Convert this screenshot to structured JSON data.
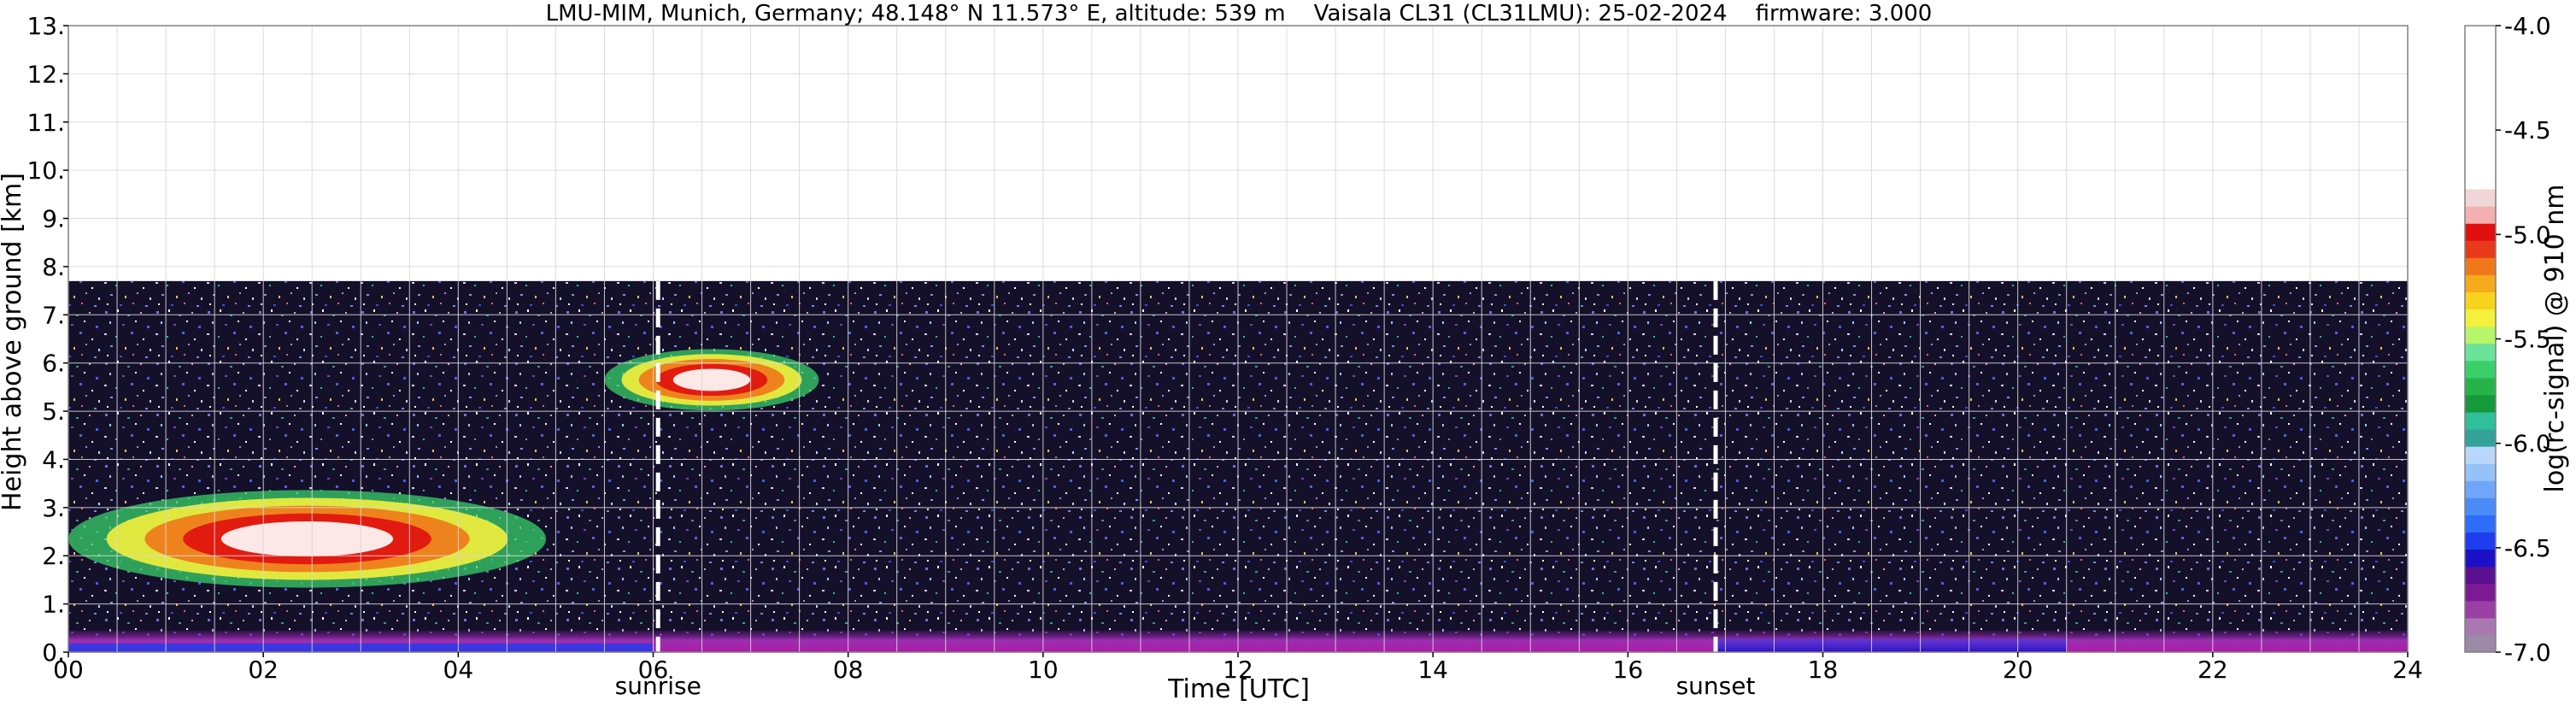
{
  "chart_data": {
    "type": "heatmap",
    "title": "LMU-MIM, Munich, Germany; 48.148° N 11.573° E, altitude: 539 m    Vaisala CL31 (CL31LMU): 25-02-2024    firmware: 3.000",
    "xlabel": "Time [UTC]",
    "ylabel": "Height above ground [km]",
    "xlim": [
      0,
      24
    ],
    "ylim": [
      0,
      13
    ],
    "x_ticks": [
      "00",
      "02",
      "04",
      "06",
      "08",
      "10",
      "12",
      "14",
      "16",
      "18",
      "20",
      "22",
      "24"
    ],
    "y_ticks": [
      "0.",
      "1.",
      "2.",
      "3.",
      "4.",
      "5.",
      "6.",
      "7.",
      "8.",
      "9.",
      "10.",
      "11.",
      "12.",
      "13."
    ],
    "colorbar": {
      "label": "log(rc-signal) @ 910 nm",
      "range": [
        -7.0,
        -4.0
      ],
      "ticks": [
        "-4.0",
        "-4.5",
        "-5.0",
        "-5.5",
        "-6.0",
        "-6.5",
        "-7.0"
      ],
      "colors": [
        "#9c8aa6",
        "#a978b0",
        "#9a3fa3",
        "#7c1a95",
        "#5a1090",
        "#1b10c8",
        "#1e3cf0",
        "#2d6ef8",
        "#4a8bf8",
        "#6fa6f9",
        "#95c2f9",
        "#b9d7fa",
        "#33a39a",
        "#2fbf9a",
        "#149a3a",
        "#26b44a",
        "#39d06a",
        "#6be29a",
        "#b7f56a",
        "#f4f03c",
        "#f8d21e",
        "#f5a91c",
        "#f0781a",
        "#e83a1a",
        "#e01010",
        "#f4b0b0",
        "#f0d6d6",
        "#ffffff"
      ]
    },
    "data_top_km": 7.7,
    "annotations": [
      {
        "label": "sunrise",
        "x": 6.05
      },
      {
        "label": "sunset",
        "x": 16.9
      }
    ],
    "features": [
      {
        "type": "cloud",
        "x_start": 0.0,
        "x_end": 4.9,
        "y_bottom": 1.0,
        "y_top": 3.7
      },
      {
        "type": "cloud",
        "x_start": 5.5,
        "x_end": 7.7,
        "y_bottom": 4.8,
        "y_top": 6.5
      },
      {
        "type": "aerosol_layer",
        "x_start": 0.0,
        "x_end": 24.0,
        "y_bottom": 0.0,
        "y_top": 0.45
      }
    ],
    "grid": true
  }
}
